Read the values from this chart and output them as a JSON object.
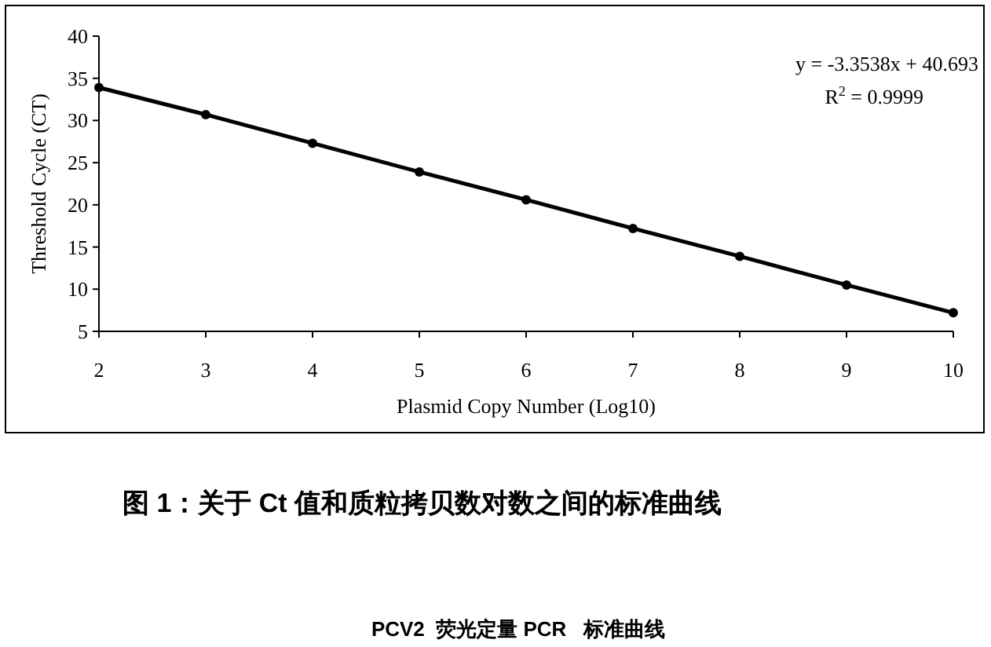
{
  "chart_data": {
    "type": "line",
    "title": "图 1：关于 Ct 值和质粒拷贝数对数之间的标准曲线",
    "xlabel": "Plasmid Copy Number (Log10)",
    "ylabel": "Threshold Cycle (CT)",
    "x": [
      2,
      3,
      4,
      5,
      6,
      7,
      8,
      9,
      10
    ],
    "series": [
      {
        "color": "#000000",
        "values": [
          33.9,
          30.7,
          27.3,
          23.9,
          20.6,
          17.2,
          13.9,
          10.5,
          7.2
        ]
      }
    ],
    "xlim": [
      2,
      10
    ],
    "xticks": [
      2,
      3,
      4,
      5,
      6,
      7,
      8,
      9,
      10
    ],
    "ylim": [
      5,
      40
    ],
    "yticks": [
      5,
      10,
      15,
      20,
      25,
      30,
      35,
      40
    ],
    "marker": "circle",
    "line_style": "solid",
    "grid": false,
    "annotations": [
      "y = -3.3538x + 40.693",
      "R$^{2}$ = 0.9999",
      "PCV2  荧光定量 PCR   标准曲线"
    ]
  }
}
